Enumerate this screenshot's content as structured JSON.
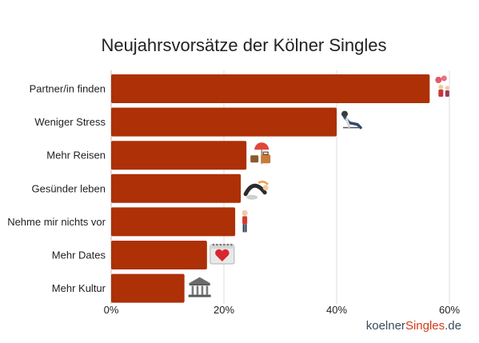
{
  "chart_data": {
    "type": "bar",
    "orientation": "horizontal",
    "title": "Neujahrsvorsätze der Kölner Singles",
    "categories": [
      "Partner/in finden",
      "Weniger Stress",
      "Mehr Reisen",
      "Gesünder leben",
      "Nehme mir nichts vor",
      "Mehr Dates",
      "Mehr Kultur"
    ],
    "values": [
      56.5,
      40,
      24,
      23,
      22,
      17,
      13
    ],
    "value_unit": "percent",
    "xlim": [
      0,
      60
    ],
    "x_ticks": [
      "0%",
      "20%",
      "40%",
      "60%"
    ],
    "x_tick_values": [
      0,
      20,
      40,
      60
    ],
    "xlabel": "",
    "ylabel": "",
    "grid": "vertical",
    "legend": "none",
    "bar_color": "#ad3007",
    "icons": [
      "couple-hearts-icon",
      "relaxing-person-icon",
      "travel-luggage-icon",
      "yoga-pose-icon",
      "standing-person-icon",
      "calendar-heart-icon",
      "museum-icon"
    ]
  },
  "brand": {
    "part1": "koelner",
    "part2": "Singles",
    "part3": ".de",
    "color_dark": "#3a4a5a",
    "color_accent": "#d03b1a"
  }
}
